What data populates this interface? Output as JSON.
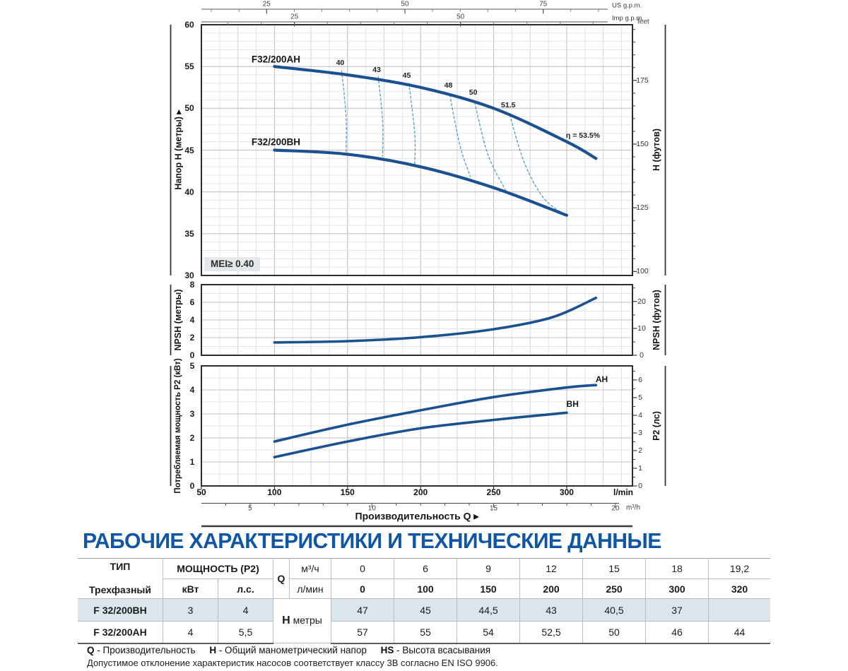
{
  "title": "РАБОЧИЕ ХАРАКТЕРИСТИКИ И ТЕХНИЧЕСКИЕ ДАННЫЕ",
  "colors": {
    "curve": "#1b5191",
    "efficiency_dashed": "#5ba3cf",
    "title_blue": "#0f56a4",
    "row_highlight": "#dbe5ec",
    "grid_minor": "#e4e4e4",
    "grid_mid": "#d4d4d4",
    "grid_major": "#c0c0c0",
    "plot_border": "#2d2d2d"
  },
  "top_axes": {
    "us": {
      "unit_label": "US g.p.m.",
      "major_ticks": [
        25,
        50,
        75
      ]
    },
    "imp": {
      "unit_label": "Imp g.p.m.",
      "major_ticks": [
        25,
        50
      ]
    }
  },
  "x_axis": {
    "lmin_ticks": [
      50,
      100,
      150,
      200,
      250,
      300
    ],
    "lmin_unit": "l/min",
    "m3h_ticks": [
      5,
      10,
      15,
      20
    ],
    "m3h_unit": "m³/h",
    "q_label": "Производительность Q ▸"
  },
  "chart_data": [
    {
      "id": "head",
      "type": "line",
      "xlabel": "Производительность Q",
      "x_unit": "l/min",
      "xlim": [
        50,
        345
      ],
      "ylabel": "Напор H (метры) ▸",
      "ylabel_right": "H (футов)",
      "right_unit": "feet",
      "ylim": [
        30,
        60
      ],
      "yticks": [
        60,
        55,
        50,
        45,
        40,
        35,
        30
      ],
      "right_ticks_feet": [
        175,
        150,
        125,
        100
      ],
      "mei_label": "MEI≥ 0.40",
      "series": [
        {
          "name": "F32/200AH",
          "label_at": [
            101,
            55.85
          ],
          "points": [
            [
              100,
              55
            ],
            [
              150,
              54
            ],
            [
              200,
              52.5
            ],
            [
              250,
              50
            ],
            [
              300,
              46
            ],
            [
              320,
              44
            ]
          ]
        },
        {
          "name": "F32/200BH",
          "label_at": [
            101,
            45.95
          ],
          "points": [
            [
              100,
              45
            ],
            [
              150,
              44.5
            ],
            [
              200,
              43
            ],
            [
              250,
              40.5
            ],
            [
              300,
              37.2
            ]
          ]
        }
      ],
      "efficiency_curves": [
        {
          "label": "40",
          "label_at": [
            145,
            55.4
          ],
          "points": [
            [
              146,
              54.5
            ],
            [
              149,
              49
            ],
            [
              149,
              44.6
            ]
          ]
        },
        {
          "label": "43",
          "label_at": [
            170,
            54.6
          ],
          "points": [
            [
              171,
              53.8
            ],
            [
              174,
              48.5
            ],
            [
              174,
              44.25
            ]
          ]
        },
        {
          "label": "45",
          "label_at": [
            190.5,
            53.95
          ],
          "points": [
            [
              192,
              53.0
            ],
            [
              196,
              47
            ],
            [
              196,
              43.2
            ]
          ]
        },
        {
          "label": "48",
          "label_at": [
            219,
            52.7
          ],
          "points": [
            [
              220,
              51.6
            ],
            [
              227,
              45.5
            ],
            [
              234,
              41.85
            ]
          ]
        },
        {
          "label": "50",
          "label_at": [
            236,
            51.9
          ],
          "points": [
            [
              237,
              50.7
            ],
            [
              246,
              44.5
            ],
            [
              258,
              40.25
            ]
          ]
        },
        {
          "label": "51.5",
          "label_at": [
            260,
            50.4
          ],
          "points": [
            [
              261,
              49.2
            ],
            [
              271,
              43.5
            ],
            [
              284,
              39.3
            ],
            [
              298,
              37.35
            ]
          ]
        }
      ],
      "bep_label": "η = 53.5%",
      "bep_label_at": [
        311,
        46.7
      ]
    },
    {
      "id": "npsh",
      "type": "line",
      "ylabel": "NPSH (метры)",
      "ylabel_right": "NPSH (футов)",
      "ylim": [
        0,
        8
      ],
      "yticks": [
        8,
        6,
        4,
        2,
        0
      ],
      "right_ticks_feet": [
        20,
        10,
        0
      ],
      "series": [
        {
          "name": "NPSH",
          "points": [
            [
              100,
              1.45
            ],
            [
              150,
              1.6
            ],
            [
              200,
              2.05
            ],
            [
              250,
              2.95
            ],
            [
              290,
              4.3
            ],
            [
              320,
              6.5
            ]
          ]
        }
      ]
    },
    {
      "id": "p2",
      "type": "line",
      "ylabel": "Потребляемая мощность P2 (кВт)",
      "ylabel_right": "P2 (лс)",
      "ylim": [
        0,
        5
      ],
      "yticks": [
        5,
        4,
        3,
        2,
        1,
        0
      ],
      "right_ticks_hp": [
        6,
        5,
        4,
        3,
        2,
        1,
        0
      ],
      "series": [
        {
          "name": "AH",
          "label_at": [
            324,
            4.45
          ],
          "points": [
            [
              100,
              1.85
            ],
            [
              150,
              2.55
            ],
            [
              200,
              3.15
            ],
            [
              250,
              3.7
            ],
            [
              300,
              4.1
            ],
            [
              320,
              4.2
            ]
          ]
        },
        {
          "name": "BH",
          "label_at": [
            304,
            3.4
          ],
          "points": [
            [
              100,
              1.2
            ],
            [
              150,
              1.85
            ],
            [
              200,
              2.4
            ],
            [
              250,
              2.75
            ],
            [
              300,
              3.05
            ]
          ]
        }
      ]
    },
    {
      "id": "spec-table",
      "type": "table",
      "q_m3h": [
        0,
        6,
        9,
        12,
        15,
        18,
        19.2
      ],
      "q_lmin": [
        0,
        100,
        150,
        200,
        250,
        300,
        320
      ],
      "H_BH_m": [
        47,
        45,
        44.5,
        43,
        40.5,
        37,
        null
      ],
      "H_AH_m": [
        57,
        55,
        54,
        52.5,
        50,
        46,
        44
      ]
    }
  ],
  "table": {
    "header_row1": {
      "type": "ТИП",
      "power": "МОЩНОСТЬ (P2)",
      "q": "Q",
      "unit": "м³/ч",
      "values": [
        "0",
        "6",
        "9",
        "12",
        "15",
        "18",
        "19,2"
      ]
    },
    "header_row2": {
      "type": "Трехфазный",
      "kw": "кВт",
      "hp": "л.с.",
      "unit": "л/мин",
      "values": [
        "0",
        "100",
        "150",
        "200",
        "250",
        "300",
        "320"
      ]
    },
    "h_label": "H",
    "h_unit": "метры",
    "rows": [
      {
        "type": "F 32/200BH",
        "kw": "3",
        "hp": "4",
        "values": [
          "47",
          "45",
          "44,5",
          "43",
          "40,5",
          "37",
          ""
        ]
      },
      {
        "type": "F 32/200AH",
        "kw": "4",
        "hp": "5,5",
        "values": [
          "57",
          "55",
          "54",
          "52,5",
          "50",
          "46",
          "44"
        ]
      }
    ]
  },
  "footer": {
    "legend": [
      {
        "term": "Q",
        "desc": " - Производительность"
      },
      {
        "term": "H",
        "desc": " - Общий манометрический напор"
      },
      {
        "term": "HS",
        "desc": " - Высота всасывания"
      }
    ],
    "note": "Допустимое отклонение характеристик насосов соответствует классу 3B согласно EN ISO 9906."
  }
}
